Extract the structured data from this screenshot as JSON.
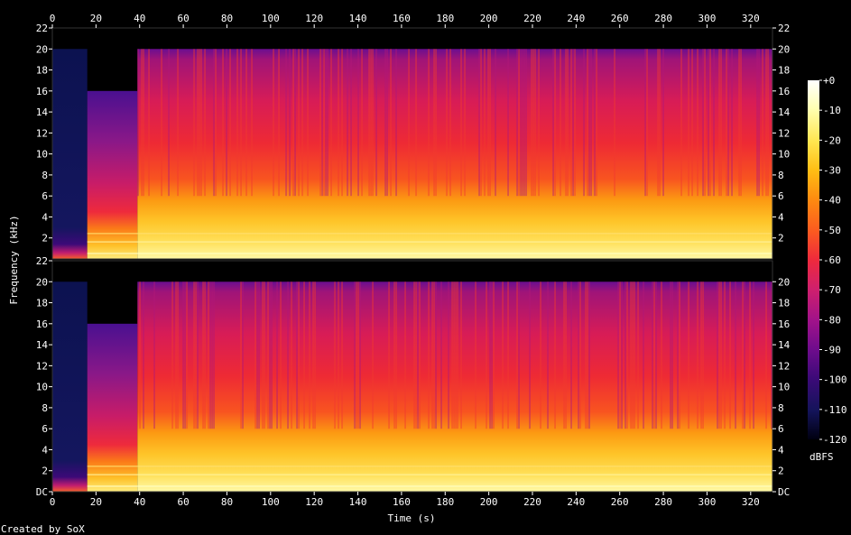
{
  "chart_data": {
    "type": "heatmap",
    "title": "",
    "xlabel": "Time (s)",
    "ylabel": "Frequency (kHz)",
    "xlim": [
      0,
      330
    ],
    "ylim": [
      0,
      22
    ],
    "x_ticks": [
      "0",
      "20",
      "40",
      "60",
      "80",
      "100",
      "120",
      "140",
      "160",
      "180",
      "200",
      "220",
      "240",
      "260",
      "280",
      "300",
      "320"
    ],
    "y_ticks_left_top": [
      "22",
      "20",
      "18",
      "16",
      "14",
      "12",
      "10",
      "8",
      "6",
      "4",
      "2"
    ],
    "y_ticks_left_bottom": [
      "22",
      "20",
      "18",
      "16",
      "14",
      "12",
      "10",
      "8",
      "6",
      "4",
      "2",
      "DC"
    ],
    "y_ticks_right_top": [
      "22",
      "20",
      "18",
      "16",
      "14",
      "12",
      "10",
      "8",
      "6",
      "4",
      "2"
    ],
    "y_ticks_right_bottom": [
      "20",
      "18",
      "16",
      "14",
      "12",
      "10",
      "8",
      "6",
      "4",
      "2",
      "DC"
    ],
    "channels": 2,
    "segments": [
      {
        "t_start": 0,
        "t_end": 16,
        "cutoff_khz": 20,
        "level": "low"
      },
      {
        "t_start": 16,
        "t_end": 39,
        "cutoff_khz": 16,
        "level": "medium"
      },
      {
        "t_start": 39,
        "t_end": 330,
        "cutoff_khz": 20,
        "level": "high"
      }
    ],
    "colorbar": {
      "label": "dBFS",
      "ticks": [
        "+0",
        "-10",
        "-20",
        "-30",
        "-40",
        "-50",
        "-60",
        "-70",
        "-80",
        "-90",
        "-100",
        "-110",
        "-120"
      ],
      "range": [
        -120,
        0
      ],
      "colors": [
        "#000010",
        "#14145a",
        "#3c0a78",
        "#6e0c8c",
        "#a0128a",
        "#d0206c",
        "#ee2a3c",
        "#fb5a20",
        "#fe8c10",
        "#ffbe14",
        "#ffe650",
        "#ffffb0",
        "#ffffff"
      ]
    }
  },
  "footer": {
    "created_by": "Created by SoX"
  }
}
